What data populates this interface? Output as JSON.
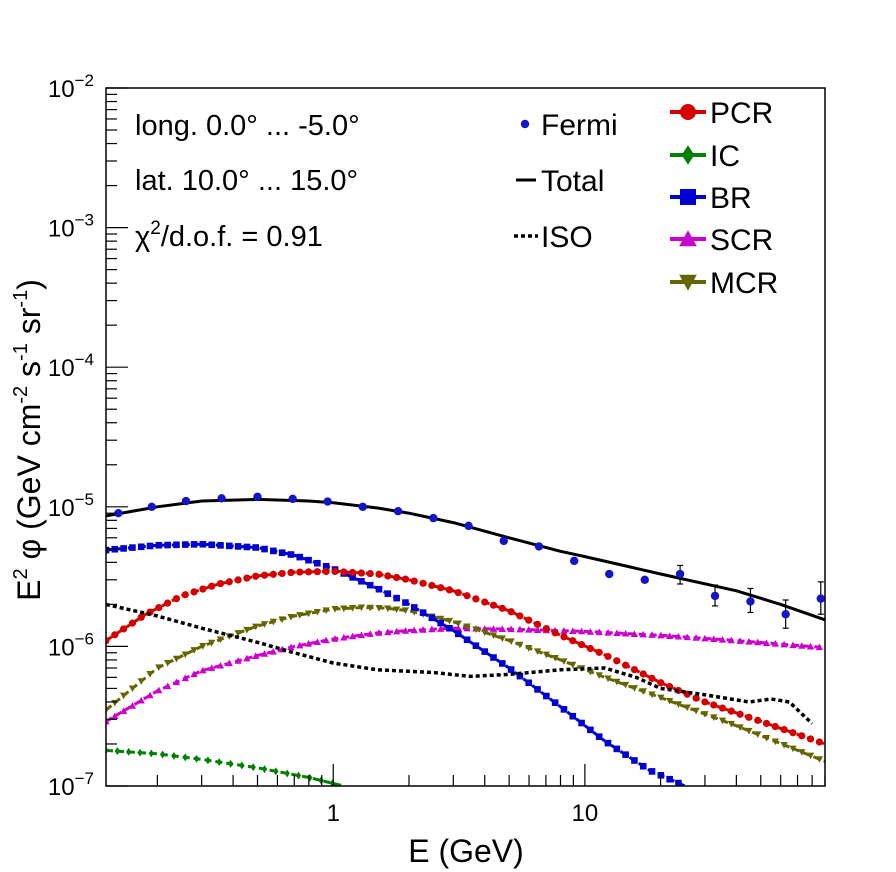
{
  "chart_data": {
    "type": "line",
    "x_scale": "log",
    "y_scale": "log",
    "xlim": [
      0.125,
      90
    ],
    "ylim": [
      1e-07,
      0.01
    ],
    "xlabel": "E (GeV)",
    "ylabel": {
      "base": "E",
      "base_sup": "2",
      "phi": " φ (GeV cm",
      "cm_sup": "-2",
      "s": " s",
      "s_sup": "-1",
      "sr": " sr",
      "sr_sup": "-1",
      "close": ")"
    },
    "x_ticks": [
      {
        "value": 1,
        "label": "1"
      },
      {
        "value": 10,
        "label": "10"
      }
    ],
    "y_ticks": [
      {
        "value": 1e-07,
        "base": "10",
        "exp": "−7"
      },
      {
        "value": 1e-06,
        "base": "10",
        "exp": "−6"
      },
      {
        "value": 1e-05,
        "base": "10",
        "exp": "−5"
      },
      {
        "value": 0.0001,
        "base": "10",
        "exp": "−4"
      },
      {
        "value": 0.001,
        "base": "10",
        "exp": "−3"
      },
      {
        "value": 0.01,
        "base": "10",
        "exp": "−2"
      }
    ],
    "annotations": {
      "longitude": "long. 0.0° ... -5.0°",
      "latitude": "lat. 10.0° ... 15.0°",
      "chi2_symbol": "χ",
      "chi2_sup": "2",
      "chi2_text": "/d.o.f. = 0.91"
    },
    "legend_left": [
      {
        "id": "fermi",
        "label": "Fermi"
      },
      {
        "id": "total",
        "label": "Total"
      },
      {
        "id": "iso",
        "label": "ISO"
      }
    ],
    "legend_right": [
      {
        "id": "pcr",
        "label": "PCR"
      },
      {
        "id": "ic",
        "label": "IC"
      },
      {
        "id": "br",
        "label": "BR"
      },
      {
        "id": "scr",
        "label": "SCR"
      },
      {
        "id": "mcr",
        "label": "MCR"
      }
    ],
    "fermi": {
      "color": "#1414c8",
      "points": [
        {
          "x": 0.14,
          "y": 9e-06
        },
        {
          "x": 0.19,
          "y": 1e-05
        },
        {
          "x": 0.26,
          "y": 1.1e-05
        },
        {
          "x": 0.36,
          "y": 1.15e-05
        },
        {
          "x": 0.5,
          "y": 1.18e-05
        },
        {
          "x": 0.69,
          "y": 1.14e-05
        },
        {
          "x": 0.95,
          "y": 1.09e-05
        },
        {
          "x": 1.31,
          "y": 1e-05
        },
        {
          "x": 1.81,
          "y": 9.3e-06
        },
        {
          "x": 2.5,
          "y": 8.3e-06
        },
        {
          "x": 3.45,
          "y": 7.3e-06
        },
        {
          "x": 4.76,
          "y": 5.7e-06
        },
        {
          "x": 6.57,
          "y": 5.2e-06
        },
        {
          "x": 9.07,
          "y": 4.1e-06
        },
        {
          "x": 12.5,
          "y": 3.3e-06
        },
        {
          "x": 17.3,
          "y": 3e-06
        },
        {
          "x": 23.9,
          "y": 3.3e-06,
          "err_lo": 2.8e-06,
          "err_hi": 3.8e-06
        },
        {
          "x": 32.9,
          "y": 2.3e-06,
          "err_lo": 1.95e-06,
          "err_hi": 2.75e-06
        },
        {
          "x": 45.5,
          "y": 2.1e-06,
          "err_lo": 1.75e-06,
          "err_hi": 2.6e-06
        },
        {
          "x": 62.8,
          "y": 1.7e-06,
          "err_lo": 1.35e-06,
          "err_hi": 2.15e-06
        },
        {
          "x": 86.6,
          "y": 2.2e-06,
          "err_lo": 1.7e-06,
          "err_hi": 2.9e-06
        }
      ]
    },
    "series": [
      {
        "id": "total",
        "name": "Total",
        "color": "#000000",
        "style": "solid",
        "marker": "none",
        "x": [
          0.125,
          0.2,
          0.3,
          0.5,
          0.8,
          1.0,
          1.5,
          2.0,
          3.0,
          5.0,
          8.0,
          10,
          20,
          40,
          60,
          90
        ],
        "y": [
          8.6e-06,
          1e-05,
          1.1e-05,
          1.13e-05,
          1.1e-05,
          1.07e-05,
          9.8e-06,
          9e-06,
          7.7e-06,
          6e-06,
          4.8e-06,
          4.4e-06,
          3.3e-06,
          2.5e-06,
          2e-06,
          1.55e-06
        ]
      },
      {
        "id": "iso",
        "name": "ISO",
        "color": "#000000",
        "style": "dotted",
        "marker": "none",
        "x": [
          0.125,
          0.2,
          0.3,
          0.5,
          0.7,
          1.0,
          1.5,
          2.5,
          3.5,
          5.0,
          8.0,
          12,
          16,
          20,
          30,
          45,
          55,
          65,
          80
        ],
        "y": [
          2e-06,
          1.65e-06,
          1.35e-06,
          1.07e-06,
          9e-07,
          7.6e-07,
          6.8e-07,
          6.5e-07,
          6.1e-07,
          6.3e-07,
          6.8e-07,
          7e-07,
          6e-07,
          5e-07,
          4.5e-07,
          4e-07,
          4.2e-07,
          4e-07,
          2.8e-07
        ]
      },
      {
        "id": "pcr",
        "name": "PCR",
        "color": "#d40000",
        "style": "dashed",
        "marker": "circle",
        "x": [
          0.125,
          0.18,
          0.25,
          0.35,
          0.5,
          0.7,
          1.0,
          1.5,
          2.0,
          3.0,
          5.0,
          8.0,
          12,
          20,
          30,
          50,
          90
        ],
        "y": [
          1.1e-06,
          1.7e-06,
          2.3e-06,
          2.8e-06,
          3.2e-06,
          3.4e-06,
          3.45e-06,
          3.3e-06,
          3e-06,
          2.5e-06,
          1.8e-06,
          1.2e-06,
          8.7e-07,
          5.5e-07,
          4e-07,
          2.9e-07,
          2e-07
        ]
      },
      {
        "id": "ic",
        "name": "IC",
        "color": "#008000",
        "style": "dashed",
        "marker": "diamond",
        "x": [
          0.125,
          0.2,
          0.3,
          0.5,
          0.8,
          1.1
        ],
        "y": [
          1.8e-07,
          1.7e-07,
          1.55e-07,
          1.35e-07,
          1.15e-07,
          1e-07
        ]
      },
      {
        "id": "br",
        "name": "BR",
        "color": "#0000d0",
        "style": "dashed",
        "marker": "square",
        "x": [
          0.125,
          0.2,
          0.3,
          0.5,
          0.7,
          1.0,
          1.5,
          2.0,
          3.0,
          5.0,
          8.0,
          12,
          18,
          25
        ],
        "y": [
          4.9e-06,
          5.3e-06,
          5.4e-06,
          5.1e-06,
          4.5e-06,
          3.6e-06,
          2.6e-06,
          2e-06,
          1.3e-06,
          7e-07,
          3.7e-07,
          2.1e-07,
          1.3e-07,
          1e-07
        ]
      },
      {
        "id": "scr",
        "name": "SCR",
        "color": "#cc00cc",
        "style": "dashed",
        "marker": "triangle-up",
        "x": [
          0.125,
          0.2,
          0.3,
          0.5,
          0.7,
          1.0,
          1.5,
          2.0,
          3.0,
          5.0,
          10,
          20,
          40,
          90
        ],
        "y": [
          2.9e-07,
          4.8e-07,
          6.7e-07,
          8.6e-07,
          1e-06,
          1.13e-06,
          1.25e-06,
          1.3e-06,
          1.35e-06,
          1.33e-06,
          1.28e-06,
          1.2e-06,
          1.1e-06,
          9.8e-07
        ]
      },
      {
        "id": "mcr",
        "name": "MCR",
        "color": "#666600",
        "style": "dashed",
        "marker": "triangle-down",
        "x": [
          0.125,
          0.2,
          0.3,
          0.5,
          0.7,
          1.0,
          1.3,
          1.6,
          2.0,
          3.0,
          5.0,
          8.0,
          12,
          20,
          40,
          90
        ],
        "y": [
          3.5e-07,
          7e-07,
          1e-06,
          1.4e-06,
          1.65e-06,
          1.85e-06,
          1.9e-06,
          1.88e-06,
          1.8e-06,
          1.5e-06,
          1.1e-06,
          8e-07,
          6e-07,
          4.3e-07,
          2.7e-07,
          1.5e-07
        ]
      }
    ]
  }
}
